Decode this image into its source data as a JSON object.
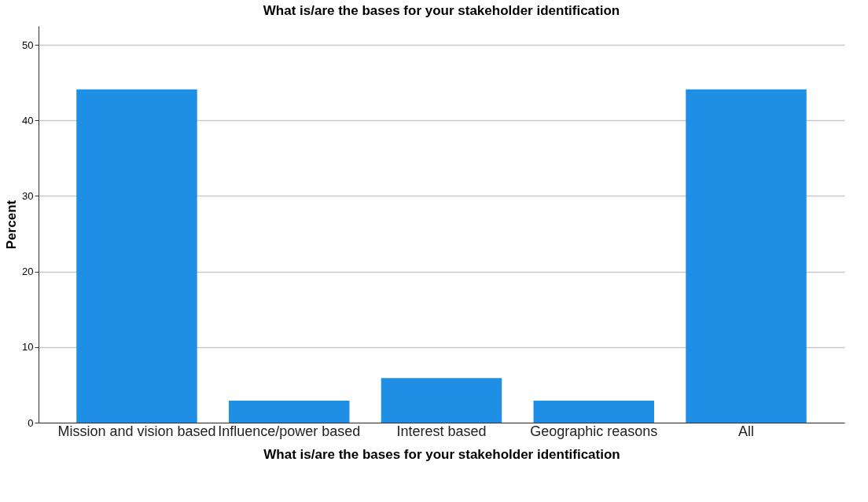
{
  "chart_data": {
    "type": "bar",
    "title": "What is/are the bases for your stakeholder identification",
    "xlabel": "What is/are the bases for your stakeholder identification",
    "ylabel": "Percent",
    "categories": [
      "Mission and vision based",
      "Influence/power based",
      "Interest based",
      "Geographic reasons",
      "All"
    ],
    "values": [
      44.1,
      2.9,
      5.9,
      2.9,
      44.1
    ],
    "color": "#1f8fe5",
    "ylim": [
      0,
      52.5
    ],
    "yticks": [
      0,
      10,
      20,
      30,
      40,
      50
    ],
    "grid": "y"
  }
}
